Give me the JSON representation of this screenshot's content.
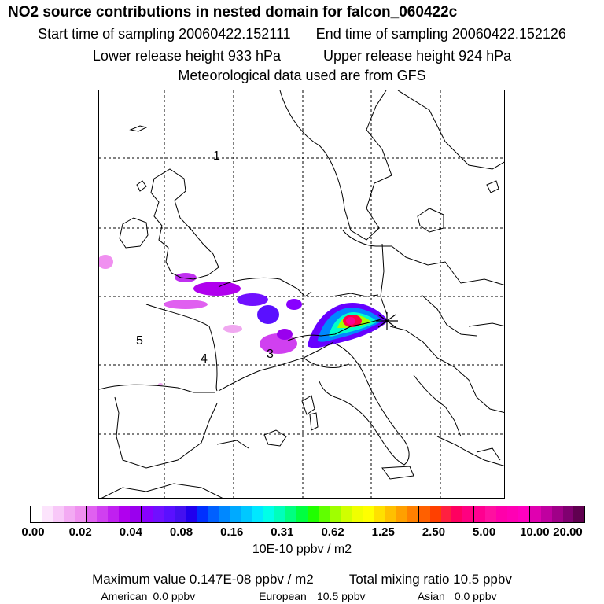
{
  "header": {
    "title": "NO2 source contributions in nested domain for falcon_060422c",
    "start_label": "Start time of sampling 20060422.152111",
    "end_label": "End time of sampling 20060422.152126",
    "lower_label": "Lower release height  933 hPa",
    "upper_label": "Upper release height  924 hPa",
    "met_label": "Meteorological data used are from GFS"
  },
  "map": {
    "region_labels": [
      "1",
      "5",
      "4",
      "3"
    ],
    "release_marker_icon": "star-icon",
    "plume_colors": [
      "#ff66ff",
      "#aa22ff",
      "#6600ff",
      "#0044ff",
      "#00ccff",
      "#00ffcc",
      "#88ff00",
      "#ffee00",
      "#ff0044"
    ]
  },
  "colorbar": {
    "tick_labels": [
      "0.00",
      "0.02",
      "0.04",
      "0.08",
      "0.16",
      "0.31",
      "0.62",
      "1.25",
      "2.50",
      "5.00",
      "10.00",
      "20.00"
    ],
    "colors": [
      "#ffffff",
      "#fce4fc",
      "#f8c8f8",
      "#f3aaf3",
      "#ef90ef",
      "#e060f0",
      "#d040f0",
      "#c020f0",
      "#b000ee",
      "#9a00ee",
      "#8800ff",
      "#7010ff",
      "#5a10ff",
      "#4410f0",
      "#2000ee",
      "#0030ff",
      "#0060ff",
      "#0088ff",
      "#00aaff",
      "#00c8ff",
      "#00e8ff",
      "#00ffe8",
      "#00ffbb",
      "#00ff80",
      "#00ff40",
      "#20ff00",
      "#60ff00",
      "#a0ff00",
      "#d0ff00",
      "#f0ff00",
      "#ffff00",
      "#ffe000",
      "#ffc000",
      "#ffa000",
      "#ff8000",
      "#ff6000",
      "#ff4000",
      "#ff2040",
      "#ff0060",
      "#ff0080",
      "#ff0090",
      "#ff10a0",
      "#ff00aa",
      "#ff00b4",
      "#ff00c0",
      "#e000b0",
      "#c000a0",
      "#a00088",
      "#800070",
      "#600050"
    ],
    "units_label": "10E-10 ppbv / m2"
  },
  "summary": {
    "max_label": "Maximum value  0.147E-08 ppbv / m2",
    "total_label": "Total mixing ratio      10.5 ppbv",
    "american_label": "American",
    "american_value": "0.0 ppbv",
    "european_label": "European",
    "european_value": "10.5 ppbv",
    "asian_label": "Asian",
    "asian_value": "0.0 ppbv"
  }
}
